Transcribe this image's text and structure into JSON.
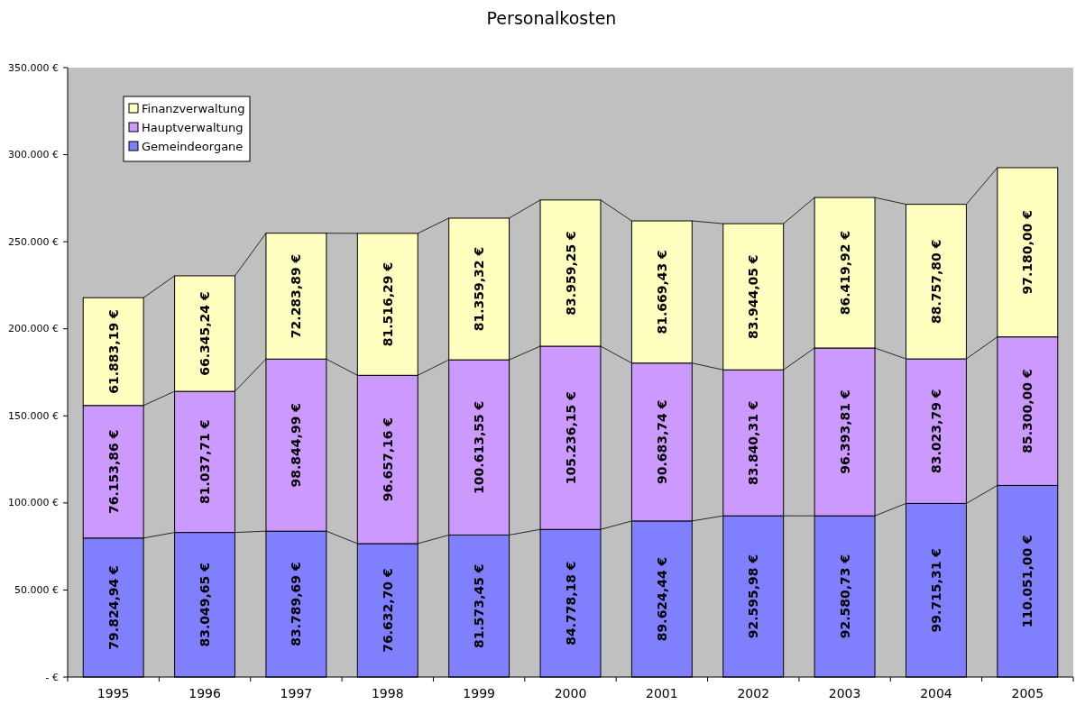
{
  "chart_data": {
    "type": "bar",
    "title": "Personalkosten",
    "stacked": true,
    "legend": "top left",
    "grid": false,
    "categories": [
      "1995",
      "1996",
      "1997",
      "1998",
      "1999",
      "2000",
      "2001",
      "2002",
      "2003",
      "2004",
      "2005"
    ],
    "ylim": [
      0,
      350000
    ],
    "yticks": [
      {
        "value": 0,
        "label": "- €"
      },
      {
        "value": 50000,
        "label": "50.000 €"
      },
      {
        "value": 100000,
        "label": "100.000 €"
      },
      {
        "value": 150000,
        "label": "150.000 €"
      },
      {
        "value": 200000,
        "label": "200.000 €"
      },
      {
        "value": 250000,
        "label": "250.000 €"
      },
      {
        "value": 300000,
        "label": "300.000 €"
      },
      {
        "value": 350000,
        "label": "350.000 €"
      }
    ],
    "series": [
      {
        "name": "Gemeindeorgane",
        "color": "#8080ff",
        "values": [
          79824.94,
          83049.65,
          83789.69,
          76632.7,
          81573.45,
          84778.18,
          89624.44,
          92595.98,
          92580.73,
          99715.31,
          110051.0
        ],
        "value_labels": [
          "79.824,94 €",
          "83.049,65 €",
          "83.789,69 €",
          "76.632,70 €",
          "81.573,45 €",
          "84.778,18 €",
          "89.624,44 €",
          "92.595,98 €",
          "92.580,73 €",
          "99.715,31 €",
          "110.051,00 €"
        ]
      },
      {
        "name": "Hauptverwaltung",
        "color": "#cc99ff",
        "values": [
          76153.86,
          81037.71,
          98844.99,
          96657.16,
          100613.55,
          105236.15,
          90683.74,
          83840.31,
          96393.81,
          83023.79,
          85300.0
        ],
        "value_labels": [
          "76.153,86 €",
          "81.037,71 €",
          "98.844,99 €",
          "96.657,16 €",
          "100.613,55 €",
          "105.236,15 €",
          "90.683,74 €",
          "83.840,31 €",
          "96.393,81 €",
          "83.023,79 €",
          "85.300,00 €"
        ]
      },
      {
        "name": "Finanzverwaltung",
        "color": "#ffffc0",
        "values": [
          61883.19,
          66345.24,
          72283.89,
          81516.29,
          81359.32,
          83959.25,
          81669.43,
          83944.05,
          86419.92,
          88757.8,
          97180.0
        ],
        "value_labels": [
          "61.883,19 €",
          "66.345,24 €",
          "72.283,89 €",
          "81.516,29 €",
          "81.359,32 €",
          "83.959,25 €",
          "81.669,43 €",
          "83.944,05 €",
          "86.419,92 €",
          "88.757,80 €",
          "97.180,00 €"
        ]
      }
    ]
  }
}
